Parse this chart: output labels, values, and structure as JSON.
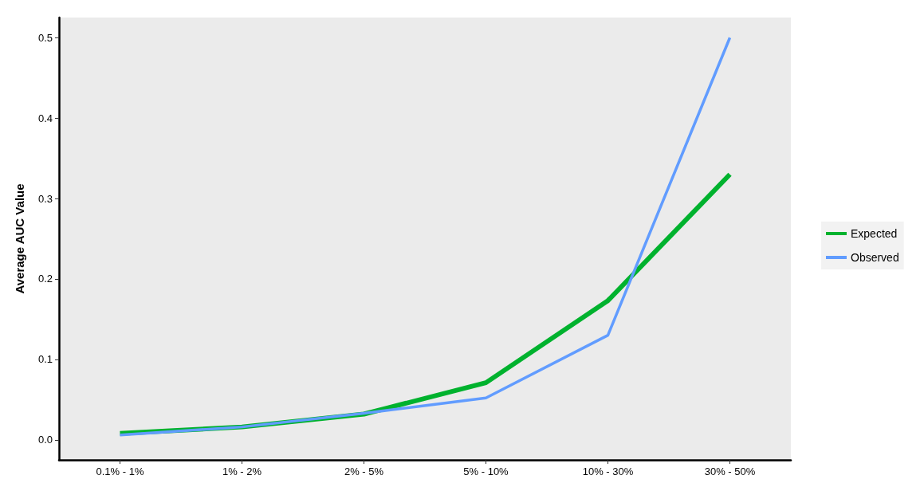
{
  "chart_data": {
    "type": "line",
    "ylabel": "Average AUC Value",
    "categories": [
      "0.1% - 1%",
      "1% - 2%",
      "2% - 5%",
      "5% - 10%",
      "10% - 30%",
      "30% - 50%"
    ],
    "series": [
      {
        "name": "Expected",
        "color": "#00b22e",
        "values": [
          0.008,
          0.016,
          0.032,
          0.071,
          0.173,
          0.33
        ]
      },
      {
        "name": "Observed",
        "color": "#619cff",
        "values": [
          0.006,
          0.016,
          0.033,
          0.052,
          0.13,
          0.5
        ]
      }
    ],
    "ylim": [
      -0.025,
      0.525
    ],
    "yticks": [
      {
        "value": 0,
        "label": "0.0"
      },
      0.1,
      0.2,
      0.3,
      0.4,
      0.5
    ],
    "grid": false,
    "legend": "right",
    "marker": "none",
    "line_style": "solid"
  }
}
